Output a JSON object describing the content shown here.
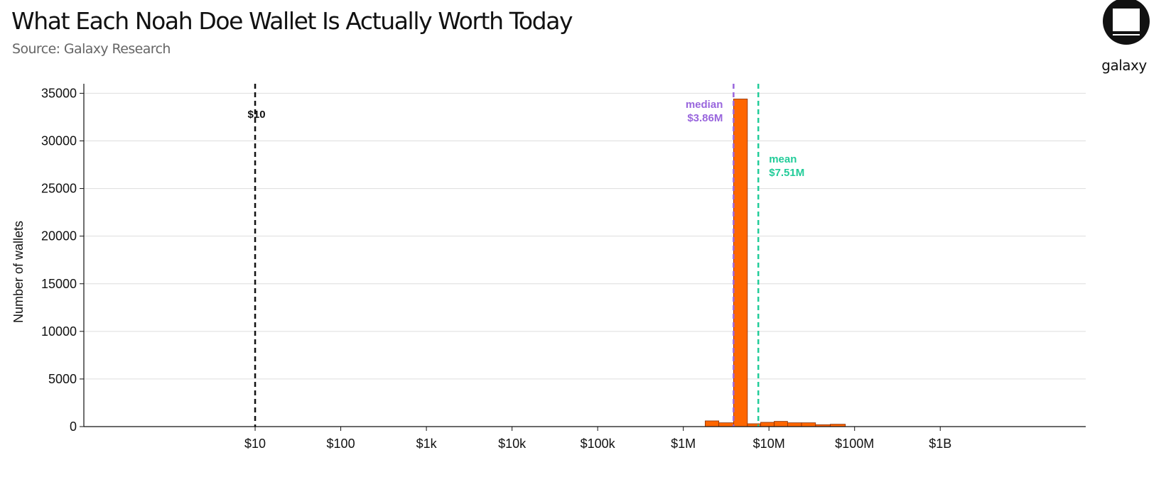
{
  "header": {
    "title": "What Each Noah Doe Wallet Is Actually Worth Today",
    "subtitle": "Source: Galaxy Research",
    "logo_text": "galaxy"
  },
  "colors": {
    "bar_fill": "#ff6600",
    "bar_edge": "#8a2e00",
    "median": "#9966dd",
    "mean": "#22cc99",
    "reference": "#111111",
    "grid": "#dddddd"
  },
  "chart_data": {
    "type": "bar",
    "title": "What Each Noah Doe Wallet Is Actually Worth Today",
    "xlabel": "",
    "ylabel": "Number of wallets",
    "x_scale": "log",
    "x_ticks": [
      {
        "value": 10,
        "label": "$10"
      },
      {
        "value": 100,
        "label": "$100"
      },
      {
        "value": 1000,
        "label": "$1k"
      },
      {
        "value": 10000,
        "label": "$10k"
      },
      {
        "value": 100000,
        "label": "$100k"
      },
      {
        "value": 1000000,
        "label": "$1M"
      },
      {
        "value": 10000000,
        "label": "$10M"
      },
      {
        "value": 100000000,
        "label": "$100M"
      },
      {
        "value": 1000000000,
        "label": "$1B"
      }
    ],
    "y_ticks": [
      0,
      5000,
      10000,
      15000,
      20000,
      25000,
      30000,
      35000
    ],
    "ylim": [
      0,
      36000
    ],
    "xlim": [
      0.1,
      50000000000
    ],
    "grid": "horizontal",
    "bins": [
      {
        "x0": 1800000,
        "x1": 2600000,
        "count": 600
      },
      {
        "x0": 2600000,
        "x1": 3860000,
        "count": 400
      },
      {
        "x0": 3860000,
        "x1": 5600000,
        "count": 34400
      },
      {
        "x0": 5600000,
        "x1": 8000000,
        "count": 300
      },
      {
        "x0": 8000000,
        "x1": 11500000,
        "count": 450
      },
      {
        "x0": 11500000,
        "x1": 16500000,
        "count": 550
      },
      {
        "x0": 16500000,
        "x1": 24000000,
        "count": 400
      },
      {
        "x0": 24000000,
        "x1": 35000000,
        "count": 400
      },
      {
        "x0": 35000000,
        "x1": 52000000,
        "count": 200
      },
      {
        "x0": 52000000,
        "x1": 78000000,
        "count": 250
      }
    ],
    "reference_lines": [
      {
        "name": "reference",
        "value": 10,
        "label": "$10",
        "color": "#111111"
      },
      {
        "name": "median",
        "value": 3860000,
        "label_top": "median",
        "label_bottom": "$3.86M",
        "color": "#9966dd"
      },
      {
        "name": "mean",
        "value": 7510000,
        "label_top": "mean",
        "label_bottom": "$7.51M",
        "color": "#22cc99"
      }
    ]
  }
}
